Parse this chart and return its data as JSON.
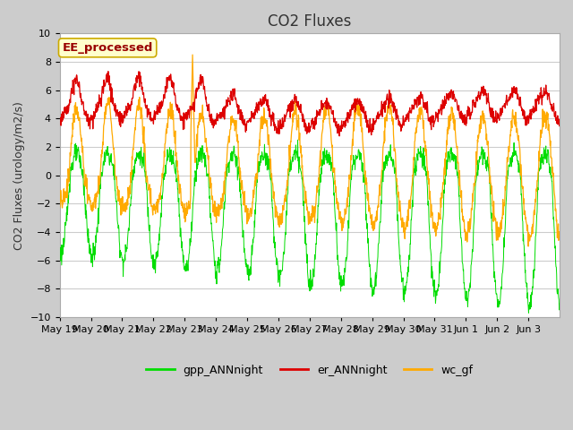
{
  "title": "CO2 Fluxes",
  "ylabel": "CO2 Fluxes (urology/m2/s)",
  "ylim": [
    -10,
    10
  ],
  "yticks": [
    -10,
    -8,
    -6,
    -4,
    -2,
    0,
    2,
    4,
    6,
    8,
    10
  ],
  "fig_bg_color": "#cccccc",
  "plot_bg_color": "#ffffff",
  "gpp_color": "#00dd00",
  "er_color": "#dd0000",
  "wc_color": "#ffaa00",
  "annotation_text": "EE_processed",
  "annotation_bg": "#ffffcc",
  "annotation_border": "#ccaa00",
  "annotation_text_color": "#990000",
  "legend_labels": [
    "gpp_ANNnight",
    "er_ANNnight",
    "wc_gf"
  ],
  "n_days": 16,
  "n_pts_per_day": 96,
  "title_fontsize": 12,
  "tick_fontsize": 8,
  "ylabel_fontsize": 9,
  "legend_fontsize": 9,
  "xtick_labels": [
    "May 19",
    "May 20",
    "May 21",
    "May 22",
    "May 23",
    "May 24",
    "May 25",
    "May 26",
    "May 27",
    "May 28",
    "May 29",
    "May 30",
    "May 31",
    "Jun 1",
    "Jun 2",
    "Jun 3"
  ]
}
